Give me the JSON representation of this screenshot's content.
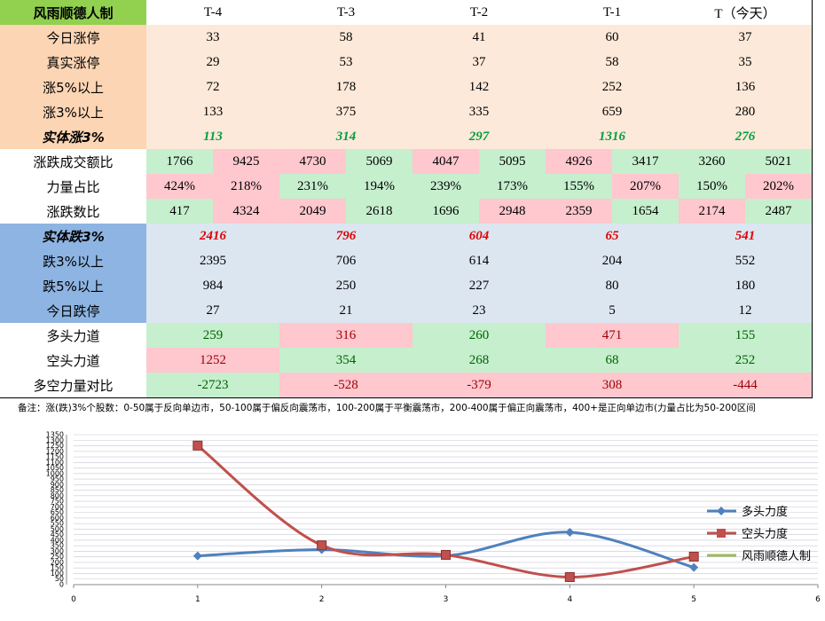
{
  "table": {
    "header": [
      "风雨顺德人制",
      "T-4",
      "T-3",
      "T-2",
      "T-1",
      "T（今天）"
    ],
    "rows": [
      {
        "label": "今日涨停",
        "values": [
          33,
          58,
          41,
          60,
          37
        ]
      },
      {
        "label": "真实涨停",
        "values": [
          29,
          53,
          37,
          58,
          35
        ]
      },
      {
        "label": "涨5%以上",
        "values": [
          72,
          178,
          142,
          252,
          136
        ]
      },
      {
        "label": "涨3%以上",
        "values": [
          133,
          375,
          335,
          659,
          280
        ]
      },
      {
        "label": "实体涨3%",
        "values": [
          113,
          314,
          297,
          1316,
          276
        ]
      },
      {
        "label": "涨跌成交额比",
        "values": [
          [
            1766,
            9425
          ],
          [
            4730,
            5069
          ],
          [
            4047,
            5095
          ],
          [
            4926,
            3417
          ],
          [
            3260,
            5021
          ]
        ]
      },
      {
        "label": "力量占比",
        "values": [
          [
            "424%",
            "218%"
          ],
          [
            "231%",
            "194%"
          ],
          [
            "239%",
            "173%"
          ],
          [
            "155%",
            "207%"
          ],
          [
            "150%",
            "202%"
          ]
        ]
      },
      {
        "label": "涨跌数比",
        "values": [
          [
            417,
            4324
          ],
          [
            2049,
            2618
          ],
          [
            1696,
            2948
          ],
          [
            2359,
            1654
          ],
          [
            2174,
            2487
          ]
        ]
      },
      {
        "label": "实体跌3%",
        "values": [
          2416,
          796,
          604,
          65,
          541
        ]
      },
      {
        "label": "跌3%以上",
        "values": [
          2395,
          706,
          614,
          204,
          552
        ]
      },
      {
        "label": "跌5%以上",
        "values": [
          984,
          250,
          227,
          80,
          180
        ]
      },
      {
        "label": "今日跌停",
        "values": [
          27,
          21,
          23,
          5,
          12
        ]
      },
      {
        "label": "多头力道",
        "values": [
          259,
          316,
          260,
          471,
          155
        ]
      },
      {
        "label": "空头力道",
        "values": [
          1252,
          354,
          268,
          68,
          252
        ]
      },
      {
        "label": "多空力量对比",
        "values": [
          -2723,
          -528,
          -379,
          308,
          -444
        ]
      }
    ]
  },
  "note": "备注：涨(跌)3%个股数：0-50属于反向单边市，50-100属于偏反向震荡市，100-200属于平衡震荡市，200-400属于偏正向震荡市，400+是正向单边市(力量占比为50-200区间",
  "chart_data": {
    "type": "line",
    "x": [
      1,
      2,
      3,
      4,
      5
    ],
    "series": [
      {
        "name": "多头力度",
        "color": "#4f81bd",
        "marker": "diamond",
        "values": [
          259,
          316,
          260,
          471,
          155
        ]
      },
      {
        "name": "空头力度",
        "color": "#c0504d",
        "marker": "square",
        "values": [
          1252,
          354,
          268,
          68,
          252
        ]
      },
      {
        "name": "风雨顺德人制",
        "color": "#9bbb59",
        "values": [
          null,
          null,
          null,
          null,
          null
        ]
      }
    ],
    "xlim": [
      0,
      6
    ],
    "xticks": [
      0,
      1,
      2,
      3,
      4,
      5,
      6
    ],
    "ylim": [
      0,
      1350
    ],
    "yticks": [
      0,
      50,
      100,
      150,
      200,
      250,
      300,
      350,
      400,
      450,
      500,
      550,
      600,
      650,
      700,
      750,
      800,
      850,
      900,
      950,
      1000,
      1050,
      1100,
      1150,
      1200,
      1250,
      1300,
      1350
    ],
    "grid": true,
    "legend": "right"
  }
}
